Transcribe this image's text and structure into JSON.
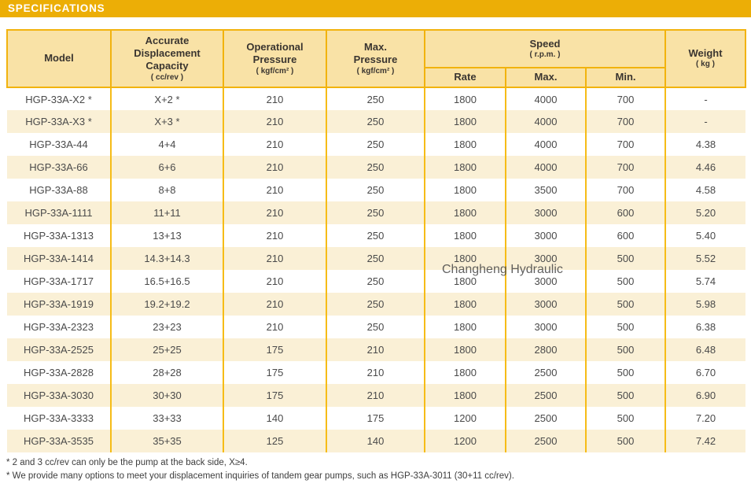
{
  "banner": {
    "title": "SPECIFICATIONS"
  },
  "colors": {
    "banner_gold": "#ECAE06",
    "border_gold": "#F6BC17",
    "header_bg": "#F9E2A6",
    "row_alt_cream": "#FAF0D6",
    "text_dark": "#4A4A4A"
  },
  "watermark": "Changheng Hydraulic",
  "table": {
    "column_keys": [
      "model",
      "displacement",
      "op_pressure",
      "max_pressure",
      "rate",
      "max",
      "min",
      "weight"
    ],
    "headers": {
      "model": "Model",
      "displacement": {
        "l1": "Accurate",
        "l2": "Displacement",
        "l3": "Capacity",
        "unit": "( cc/rev )"
      },
      "op_pressure": {
        "l1": "Operational",
        "l2": "Pressure",
        "unit": "( kgf/cm² )"
      },
      "max_pressure": {
        "l1": "Max.",
        "l2": "Pressure",
        "unit": "( kgf/cm² )"
      },
      "speed": {
        "title": "Speed",
        "unit": "( r.p.m. )",
        "sub": {
          "rate": "Rate",
          "max": "Max.",
          "min": "Min."
        }
      },
      "weight": {
        "l1": "Weight",
        "unit": "( kg )"
      }
    },
    "rows": [
      {
        "model": "HGP-33A-X2 *",
        "displacement": "X+2 *",
        "op_pressure": "210",
        "max_pressure": "250",
        "rate": "1800",
        "max": "4000",
        "min": "700",
        "weight": "-"
      },
      {
        "model": "HGP-33A-X3 *",
        "displacement": "X+3 *",
        "op_pressure": "210",
        "max_pressure": "250",
        "rate": "1800",
        "max": "4000",
        "min": "700",
        "weight": "-"
      },
      {
        "model": "HGP-33A-44",
        "displacement": "4+4",
        "op_pressure": "210",
        "max_pressure": "250",
        "rate": "1800",
        "max": "4000",
        "min": "700",
        "weight": "4.38"
      },
      {
        "model": "HGP-33A-66",
        "displacement": "6+6",
        "op_pressure": "210",
        "max_pressure": "250",
        "rate": "1800",
        "max": "4000",
        "min": "700",
        "weight": "4.46"
      },
      {
        "model": "HGP-33A-88",
        "displacement": "8+8",
        "op_pressure": "210",
        "max_pressure": "250",
        "rate": "1800",
        "max": "3500",
        "min": "700",
        "weight": "4.58"
      },
      {
        "model": "HGP-33A-1111",
        "displacement": "11+11",
        "op_pressure": "210",
        "max_pressure": "250",
        "rate": "1800",
        "max": "3000",
        "min": "600",
        "weight": "5.20"
      },
      {
        "model": "HGP-33A-1313",
        "displacement": "13+13",
        "op_pressure": "210",
        "max_pressure": "250",
        "rate": "1800",
        "max": "3000",
        "min": "600",
        "weight": "5.40"
      },
      {
        "model": "HGP-33A-1414",
        "displacement": "14.3+14.3",
        "op_pressure": "210",
        "max_pressure": "250",
        "rate": "1800",
        "max": "3000",
        "min": "500",
        "weight": "5.52"
      },
      {
        "model": "HGP-33A-1717",
        "displacement": "16.5+16.5",
        "op_pressure": "210",
        "max_pressure": "250",
        "rate": "1800",
        "max": "3000",
        "min": "500",
        "weight": "5.74"
      },
      {
        "model": "HGP-33A-1919",
        "displacement": "19.2+19.2",
        "op_pressure": "210",
        "max_pressure": "250",
        "rate": "1800",
        "max": "3000",
        "min": "500",
        "weight": "5.98"
      },
      {
        "model": "HGP-33A-2323",
        "displacement": "23+23",
        "op_pressure": "210",
        "max_pressure": "250",
        "rate": "1800",
        "max": "3000",
        "min": "500",
        "weight": "6.38"
      },
      {
        "model": "HGP-33A-2525",
        "displacement": "25+25",
        "op_pressure": "175",
        "max_pressure": "210",
        "rate": "1800",
        "max": "2800",
        "min": "500",
        "weight": "6.48"
      },
      {
        "model": "HGP-33A-2828",
        "displacement": "28+28",
        "op_pressure": "175",
        "max_pressure": "210",
        "rate": "1800",
        "max": "2500",
        "min": "500",
        "weight": "6.70"
      },
      {
        "model": "HGP-33A-3030",
        "displacement": "30+30",
        "op_pressure": "175",
        "max_pressure": "210",
        "rate": "1800",
        "max": "2500",
        "min": "500",
        "weight": "6.90"
      },
      {
        "model": "HGP-33A-3333",
        "displacement": "33+33",
        "op_pressure": "140",
        "max_pressure": "175",
        "rate": "1200",
        "max": "2500",
        "min": "500",
        "weight": "7.20"
      },
      {
        "model": "HGP-33A-3535",
        "displacement": "35+35",
        "op_pressure": "125",
        "max_pressure": "140",
        "rate": "1200",
        "max": "2500",
        "min": "500",
        "weight": "7.42"
      }
    ]
  },
  "notes": {
    "line1": "* 2 and 3 cc/rev can only be the pump at the back side, X≥4.",
    "line2": "* We provide many options to meet your displacement inquiries of tandem gear pumps, such as HGP-33A-3011 (30+11 cc/rev)."
  }
}
